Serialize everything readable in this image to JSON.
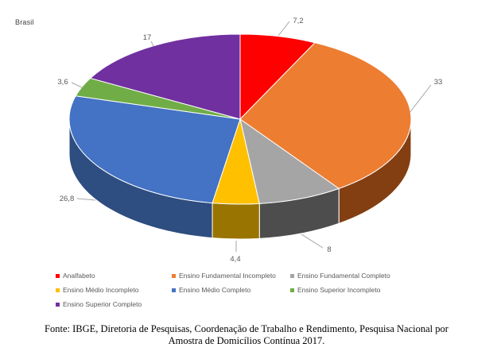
{
  "title": "Brasil",
  "chart_data": {
    "type": "pie",
    "style": "3d",
    "title": "Brasil",
    "start_angle_deg": 0,
    "direction": "clockwise",
    "legend_position": "bottom",
    "categories": [
      "Analfabeto",
      "Ensino Fundamental Incompleto",
      "Ensino Fundamental Completo",
      "Ensino Médio Incompleto",
      "Ensino Médio Completo",
      "Ensino Superior Incompleto",
      "Ensino Superior Completo"
    ],
    "values": [
      7.2,
      33,
      8,
      4.4,
      26.8,
      3.6,
      17
    ],
    "value_labels": [
      "7,2",
      "33",
      "8",
      "4,4",
      "26,8",
      "3,6",
      "17"
    ],
    "colors": [
      "#FF0000",
      "#ED7D31",
      "#A5A5A5",
      "#FFC000",
      "#4472C4",
      "#70AD47",
      "#7030A0"
    ],
    "side_colors": [
      "#B00000",
      "#833F12",
      "#4D4D4D",
      "#9A7400",
      "#2E4D80",
      "#3F6528",
      "#431C60"
    ],
    "leader_line_color": "#A6A6A6",
    "data_label_color": "#595959"
  },
  "source": {
    "lines": [
      "Fonte: IBGE, Diretoria de Pesquisas, Coordenação de Trabalho e Rendimento, Pesquisa Nacional por",
      "Amostra de Domicílios Contínua 2017."
    ]
  }
}
